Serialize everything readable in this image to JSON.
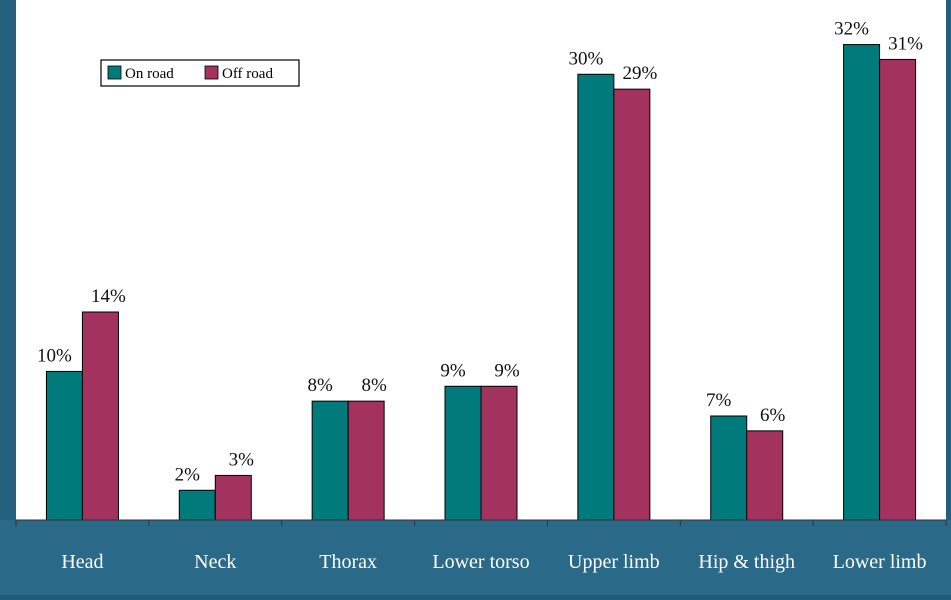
{
  "colors": {
    "on_road": "#007a7a",
    "off_road": "#a3325e",
    "plot_bg": "#ffffff",
    "frame_bg": "#24607e",
    "axis_band": "#2a6a88",
    "axis_label": "#ffffff",
    "value_label": "#111111"
  },
  "chart_data": {
    "type": "bar",
    "title": "",
    "xlabel": "",
    "ylabel": "",
    "ylim": [
      0,
      35
    ],
    "grid": false,
    "legend_placement": "top-left",
    "categories": [
      "Head",
      "Neck",
      "Thorax",
      "Lower torso",
      "Upper limb",
      "Hip & thigh",
      "Lower limb"
    ],
    "series": [
      {
        "name": "On road",
        "values": [
          10,
          2,
          8,
          9,
          30,
          7,
          32
        ],
        "labels": [
          "10%",
          "2%",
          "8%",
          "9%",
          "30%",
          "7%",
          "32%"
        ]
      },
      {
        "name": "Off road",
        "values": [
          14,
          3,
          8,
          9,
          29,
          6,
          31
        ],
        "labels": [
          "14%",
          "3%",
          "8%",
          "9%",
          "29%",
          "6%",
          "31%"
        ]
      }
    ]
  }
}
